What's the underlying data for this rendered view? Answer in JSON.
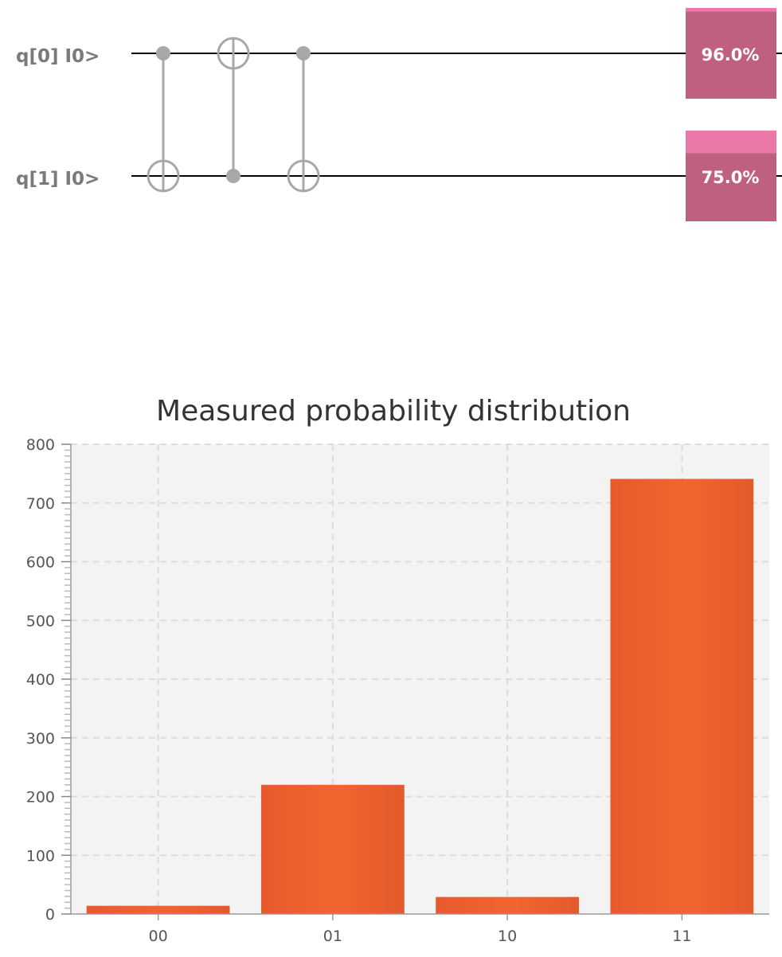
{
  "circuit": {
    "qubits": [
      {
        "label": "q[0] I0>",
        "probability": 0.96,
        "probability_label": "96.0%"
      },
      {
        "label": "q[1] I0>",
        "probability": 0.75,
        "probability_label": "75.0%"
      }
    ],
    "gates": [
      {
        "type": "cnot",
        "control": 0,
        "target": 1
      },
      {
        "type": "cnot",
        "control": 1,
        "target": 0
      },
      {
        "type": "cnot",
        "control": 0,
        "target": 1
      }
    ],
    "colors": {
      "wire": "#000000",
      "gate": "#a8a8a8",
      "meter_fill": "#c06080",
      "meter_empty": "#ec78aa"
    }
  },
  "chart_data": {
    "type": "bar",
    "title": "Measured probability distribution",
    "categories": [
      "00",
      "01",
      "10",
      "11"
    ],
    "values": [
      14,
      220,
      29,
      741
    ],
    "ylim": [
      0,
      800
    ],
    "yticks": [
      0,
      100,
      200,
      300,
      400,
      500,
      600,
      700,
      800
    ],
    "grid": true,
    "bar_color": "#f0602e",
    "background": "#f3f3f3"
  }
}
